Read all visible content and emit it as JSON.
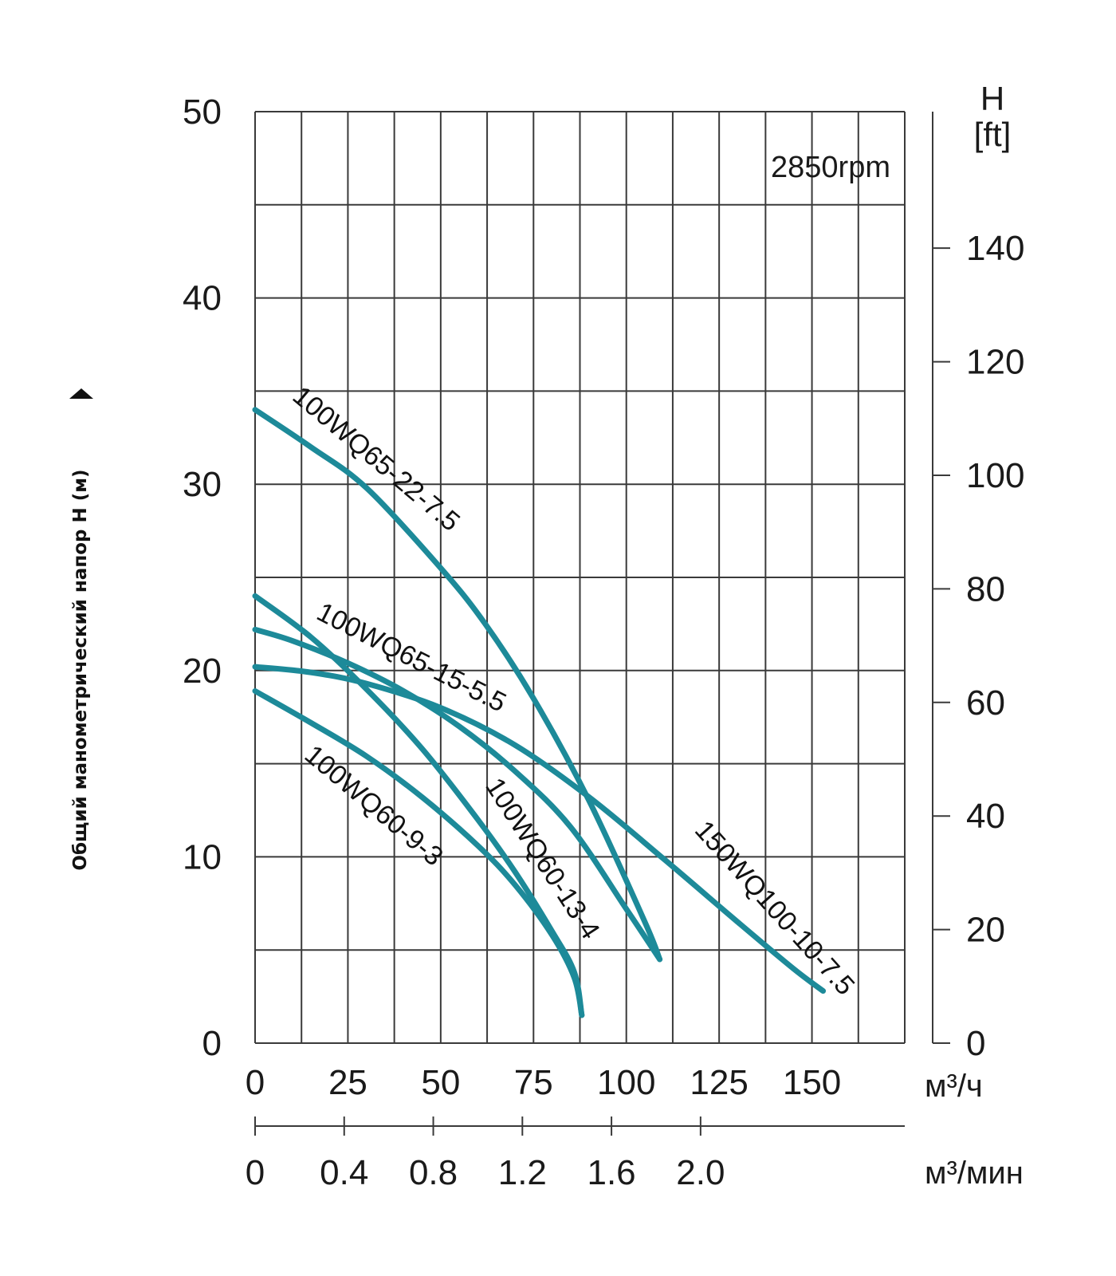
{
  "chart_data": {
    "type": "line",
    "title": "",
    "annotation": "2850rpm",
    "ylabel": "Общий манометрический напор H (м)",
    "y_right_label_top": "H",
    "y_right_label_bottom": "[ft]",
    "x_unit_top": "м³/ч",
    "x_unit_bottom": "м³/мин",
    "ylim": [
      0,
      50
    ],
    "xlim": [
      0,
      175
    ],
    "grid": true,
    "y_ticks": [
      "0",
      "10",
      "20",
      "30",
      "40",
      "50"
    ],
    "y_ticks_ft": [
      "0",
      "20",
      "40",
      "60",
      "80",
      "100",
      "120",
      "140"
    ],
    "x_ticks": [
      "0",
      "25",
      "50",
      "75",
      "100",
      "125",
      "150"
    ],
    "x_ticks_min": [
      "0",
      "0.4",
      "0.8",
      "1.2",
      "1.6",
      "2.0"
    ],
    "line_color": "#1d8a99",
    "series": [
      {
        "name": "100WQ65-22-7.5",
        "x": [
          0,
          15,
          30,
          50,
          62,
          75,
          90,
          105,
          109
        ],
        "y": [
          34.0,
          32.0,
          29.8,
          25.5,
          22.5,
          18.5,
          13.0,
          6.5,
          4.5
        ]
      },
      {
        "name": "100WQ65-15-5.5",
        "x": [
          0,
          10,
          25,
          40,
          55,
          70,
          85,
          100,
          109
        ],
        "y": [
          22.2,
          21.6,
          20.4,
          18.9,
          17.0,
          14.6,
          11.6,
          7.2,
          4.5
        ]
      },
      {
        "name": "100WQ60-13-4",
        "x": [
          0,
          15,
          30,
          45,
          60,
          70,
          80,
          86,
          88
        ],
        "y": [
          24.0,
          21.8,
          19.0,
          15.8,
          12.0,
          9.2,
          6.0,
          3.8,
          1.5
        ]
      },
      {
        "name": "100WQ60-9-3",
        "x": [
          0,
          15,
          30,
          45,
          60,
          70,
          80,
          86,
          88
        ],
        "y": [
          18.9,
          17.2,
          15.4,
          13.2,
          10.6,
          8.5,
          5.8,
          3.5,
          1.5
        ]
      },
      {
        "name": "150WQ100-10-7.5",
        "x": [
          0,
          15,
          30,
          50,
          70,
          90,
          110,
          130,
          145,
          153
        ],
        "y": [
          20.2,
          19.9,
          19.3,
          18.0,
          16.0,
          13.2,
          9.9,
          6.5,
          4.0,
          2.8
        ]
      }
    ]
  }
}
